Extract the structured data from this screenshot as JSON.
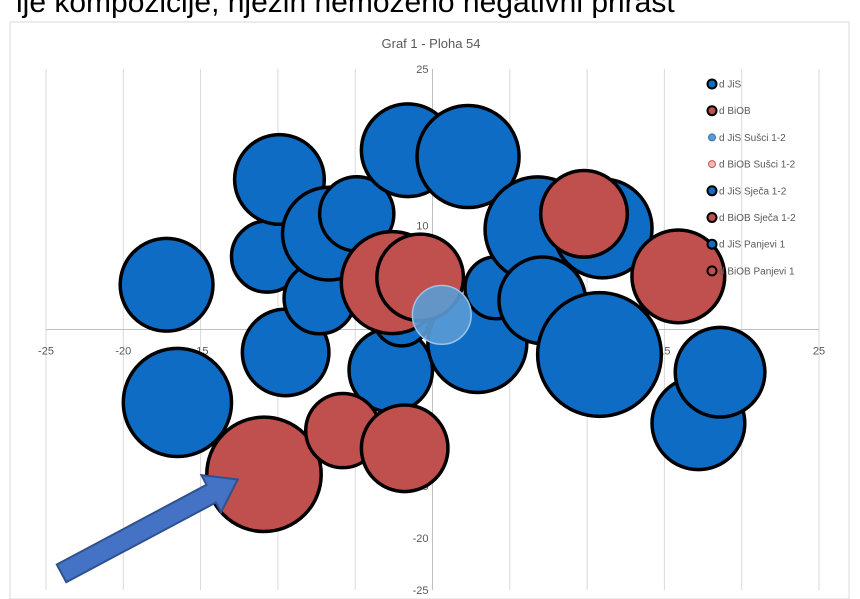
{
  "top_text": "ije kompozicije, njezin nemoženo negativni prirast",
  "chart_data": {
    "type": "bubble",
    "title": "Graf 1 - Ploha 54",
    "xlim": [
      -25,
      25
    ],
    "ylim": [
      -25,
      25
    ],
    "x_ticks": [
      -25,
      -20,
      -15,
      -10,
      -5,
      0,
      5,
      10,
      15,
      20,
      25
    ],
    "y_ticks": [
      -25,
      -20,
      -15,
      -10,
      -5,
      0,
      5,
      10,
      15,
      20,
      25
    ],
    "grid": "vertical",
    "legend_position": "top-right",
    "series": [
      {
        "name": "d JiS",
        "color": "#0f6cc5",
        "points": [
          {
            "x": -17.2,
            "y": 4.3,
            "r": 3.0
          },
          {
            "x": -16.5,
            "y": -7.0,
            "r": 3.5
          },
          {
            "x": -10.7,
            "y": 7.0,
            "r": 2.3
          },
          {
            "x": -9.9,
            "y": 14.4,
            "r": 2.9
          },
          {
            "x": -9.5,
            "y": -2.2,
            "r": 2.8
          },
          {
            "x": -7.3,
            "y": 3.0,
            "r": 2.3
          },
          {
            "x": -6.7,
            "y": 9.2,
            "r": 3.0
          },
          {
            "x": -4.9,
            "y": 11.1,
            "r": 2.4
          },
          {
            "x": -2.7,
            "y": -3.9,
            "r": 2.7
          },
          {
            "x": -2.0,
            "y": 1.1,
            "r": 1.8
          },
          {
            "x": -1.6,
            "y": 17.2,
            "r": 3.0
          },
          {
            "x": 2.3,
            "y": 16.6,
            "r": 3.3
          },
          {
            "x": 2.9,
            "y": -1.3,
            "r": 3.2
          },
          {
            "x": 4.1,
            "y": 4.0,
            "r": 2.0
          },
          {
            "x": 6.8,
            "y": 9.6,
            "r": 3.4
          },
          {
            "x": 7.1,
            "y": 2.8,
            "r": 2.8
          },
          {
            "x": 11.0,
            "y": 9.7,
            "r": 3.2
          },
          {
            "x": 10.8,
            "y": -2.4,
            "r": 4.0
          },
          {
            "x": 17.2,
            "y": -9.0,
            "r": 3.0
          },
          {
            "x": 18.6,
            "y": -4.1,
            "r": 2.9
          }
        ]
      },
      {
        "name": "d BiOB",
        "color": "#c0504d",
        "points": [
          {
            "x": -10.9,
            "y": -13.9,
            "r": 3.7
          },
          {
            "x": -5.8,
            "y": -9.7,
            "r": 2.4
          },
          {
            "x": -1.8,
            "y": -11.4,
            "r": 2.8
          },
          {
            "x": -2.6,
            "y": 4.5,
            "r": 3.3
          },
          {
            "x": -0.8,
            "y": 5.0,
            "r": 2.8
          },
          {
            "x": 9.8,
            "y": 11.1,
            "r": 2.8
          },
          {
            "x": 15.9,
            "y": 5.1,
            "r": 3.0
          }
        ]
      },
      {
        "name": "d JiS Sušci 1-2",
        "color": "#5b9bd5",
        "points": [
          {
            "x": 0.6,
            "y": 1.4,
            "r": 1.9
          }
        ]
      },
      {
        "name": "d BiOB Sušci 1-2",
        "color": "#e6a0a0",
        "points": []
      },
      {
        "name": "d JiS Sječa 1-2",
        "color": "#0f6cc5",
        "points": []
      },
      {
        "name": "d BiOB Sječa 1-2",
        "color": "#c0504d",
        "points": []
      },
      {
        "name": "d JiS Panjevi 1",
        "color": "#0f6cc5",
        "points": []
      },
      {
        "name": "d BiOB Panjevi 1",
        "color": "#c0504d",
        "points": []
      }
    ],
    "annotation": {
      "type": "arrow",
      "from": {
        "x": -24.0,
        "y": -23.4
      },
      "to": {
        "x": -12.6,
        "y": -14.4
      },
      "color": "#4472c4"
    }
  }
}
